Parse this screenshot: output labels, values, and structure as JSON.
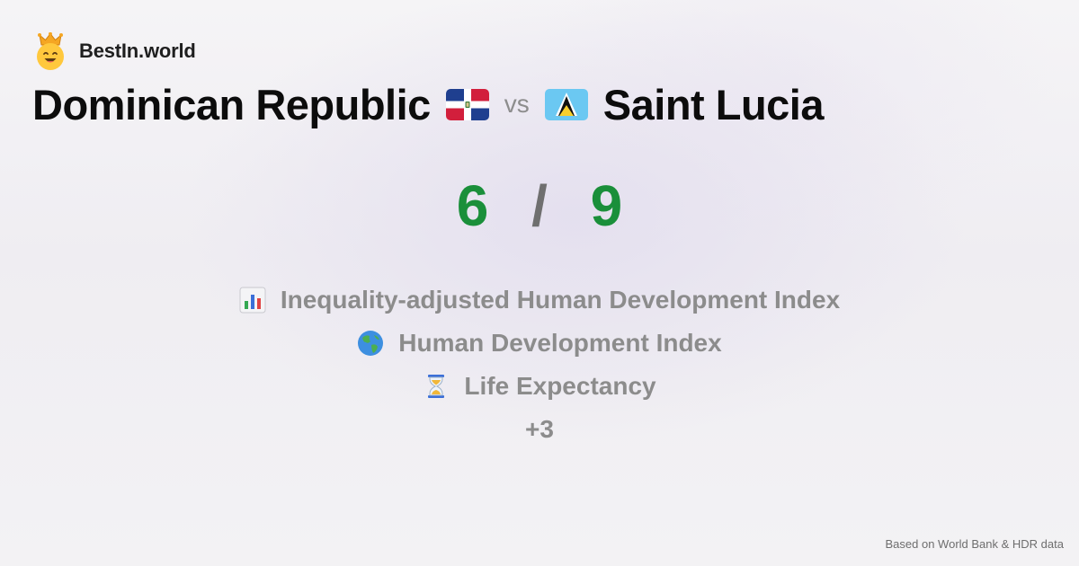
{
  "brand": {
    "name": "BestIn.world",
    "logo_icon": "crown-smiley-icon"
  },
  "comparison": {
    "left_country": "Dominican Republic",
    "left_flag": "dominican-republic-flag-icon",
    "vs_label": "vs",
    "right_country": "Saint Lucia",
    "right_flag": "saint-lucia-flag-icon"
  },
  "score": {
    "left": "6",
    "separator": "/",
    "right": "9",
    "color": "#1a8f3a"
  },
  "metrics": [
    {
      "icon": "bar-chart-icon",
      "label": "Inequality-adjusted Human Development Index"
    },
    {
      "icon": "globe-icon",
      "label": "Human Development Index"
    },
    {
      "icon": "hourglass-icon",
      "label": "Life Expectancy"
    }
  ],
  "more_label": "+3",
  "source_text": "Based on World Bank & HDR data"
}
